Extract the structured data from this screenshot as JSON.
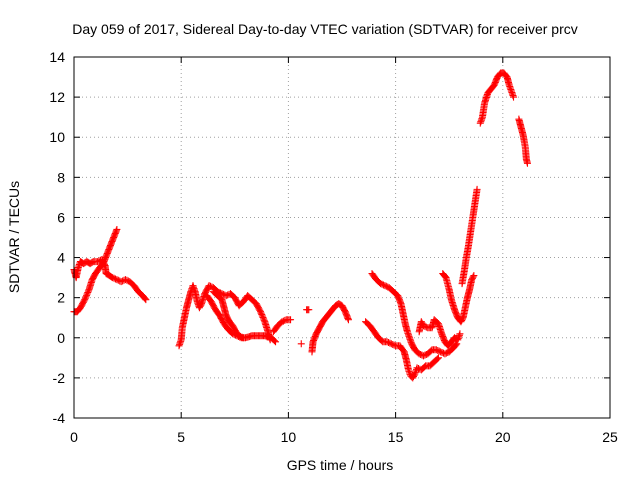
{
  "chart_data": {
    "type": "scatter",
    "title": "Day 059 of 2017, Sidereal Day-to-day VTEC variation (SDTVAR) for receiver prcv",
    "xlabel": "GPS time / hours",
    "ylabel": "SDTVAR / TECUs",
    "xlim": [
      0,
      25
    ],
    "ylim": [
      -4,
      14
    ],
    "xticks": [
      "0",
      "5",
      "10",
      "15",
      "20",
      "25"
    ],
    "yticks": [
      "-4",
      "-2",
      "0",
      "2",
      "4",
      "6",
      "8",
      "10",
      "12",
      "14"
    ],
    "grid": true,
    "marker": "+",
    "color": "#ff0000",
    "segments": [
      [
        [
          0.0,
          3.4
        ],
        [
          0.1,
          3.0
        ],
        [
          0.2,
          3.5
        ],
        [
          0.3,
          3.8
        ],
        [
          0.45,
          3.7
        ],
        [
          0.6,
          3.8
        ],
        [
          0.75,
          3.7
        ],
        [
          0.9,
          3.8
        ],
        [
          1.1,
          3.8
        ],
        [
          1.3,
          3.9
        ],
        [
          1.45,
          3.6
        ],
        [
          1.5,
          3.2
        ],
        [
          1.65,
          3.1
        ],
        [
          1.8,
          3.0
        ],
        [
          2.0,
          2.9
        ],
        [
          2.2,
          2.8
        ],
        [
          2.4,
          2.9
        ],
        [
          2.6,
          2.8
        ],
        [
          2.8,
          2.6
        ],
        [
          3.0,
          2.3
        ],
        [
          3.2,
          2.1
        ],
        [
          3.35,
          1.9
        ]
      ],
      [
        [
          0.0,
          1.3
        ],
        [
          0.15,
          1.3
        ],
        [
          0.3,
          1.5
        ],
        [
          0.5,
          1.9
        ],
        [
          0.7,
          2.4
        ],
        [
          0.85,
          2.9
        ],
        [
          1.0,
          3.2
        ],
        [
          1.2,
          3.5
        ],
        [
          1.4,
          3.8
        ],
        [
          1.55,
          4.2
        ],
        [
          1.7,
          4.6
        ],
        [
          1.85,
          5.0
        ],
        [
          2.0,
          5.4
        ]
      ],
      [
        [
          4.9,
          -0.4
        ],
        [
          5.0,
          -0.1
        ],
        [
          5.05,
          0.5
        ],
        [
          5.15,
          1.0
        ],
        [
          5.25,
          1.5
        ],
        [
          5.35,
          1.9
        ],
        [
          5.45,
          2.3
        ],
        [
          5.55,
          2.6
        ],
        [
          5.65,
          2.3
        ],
        [
          5.75,
          1.8
        ],
        [
          5.85,
          1.5
        ],
        [
          5.95,
          1.7
        ],
        [
          6.1,
          2.2
        ],
        [
          6.3,
          2.6
        ],
        [
          6.5,
          2.5
        ],
        [
          6.7,
          2.3
        ],
        [
          6.9,
          2.2
        ],
        [
          7.1,
          2.1
        ],
        [
          7.3,
          2.2
        ],
        [
          7.5,
          2.0
        ],
        [
          7.7,
          1.6
        ],
        [
          7.9,
          1.8
        ],
        [
          8.1,
          2.1
        ],
        [
          8.3,
          1.9
        ],
        [
          8.5,
          1.7
        ],
        [
          8.7,
          1.3
        ],
        [
          8.9,
          0.8
        ],
        [
          9.05,
          0.3
        ],
        [
          9.15,
          -0.1
        ]
      ],
      [
        [
          6.2,
          2.1
        ],
        [
          6.4,
          1.8
        ],
        [
          6.6,
          1.4
        ],
        [
          6.8,
          1.1
        ],
        [
          7.0,
          0.7
        ],
        [
          7.2,
          0.4
        ],
        [
          7.4,
          0.2
        ],
        [
          7.6,
          0.1
        ],
        [
          7.8,
          0.0
        ],
        [
          8.0,
          0.0
        ],
        [
          8.3,
          0.1
        ],
        [
          8.6,
          0.1
        ],
        [
          8.9,
          0.1
        ],
        [
          9.2,
          0.0
        ],
        [
          9.4,
          -0.2
        ]
      ],
      [
        [
          6.5,
          2.3
        ],
        [
          6.7,
          2.1
        ],
        [
          6.9,
          1.9
        ],
        [
          7.0,
          1.5
        ],
        [
          7.1,
          1.1
        ],
        [
          7.25,
          0.8
        ],
        [
          7.4,
          0.6
        ],
        [
          7.55,
          0.3
        ],
        [
          7.7,
          0.1
        ],
        [
          7.9,
          0.0
        ]
      ],
      [
        [
          9.3,
          0.3
        ],
        [
          9.5,
          0.6
        ],
        [
          9.7,
          0.8
        ],
        [
          9.9,
          0.9
        ],
        [
          10.1,
          0.9
        ]
      ],
      [
        [
          10.6,
          -0.3
        ]
      ],
      [
        [
          10.85,
          1.4
        ],
        [
          10.95,
          1.4
        ]
      ],
      [
        [
          11.1,
          -0.7
        ],
        [
          11.15,
          -0.2
        ],
        [
          11.3,
          0.2
        ],
        [
          11.45,
          0.5
        ],
        [
          11.6,
          0.8
        ],
        [
          11.75,
          1.0
        ],
        [
          11.9,
          1.2
        ],
        [
          12.05,
          1.4
        ],
        [
          12.2,
          1.6
        ],
        [
          12.35,
          1.7
        ],
        [
          12.5,
          1.6
        ],
        [
          12.65,
          1.3
        ],
        [
          12.8,
          0.9
        ]
      ],
      [
        [
          13.6,
          0.8
        ],
        [
          13.8,
          0.6
        ],
        [
          14.0,
          0.3
        ],
        [
          14.2,
          0.0
        ],
        [
          14.4,
          -0.2
        ],
        [
          14.6,
          -0.2
        ],
        [
          14.8,
          -0.3
        ],
        [
          15.0,
          -0.4
        ],
        [
          15.2,
          -0.4
        ],
        [
          15.4,
          -0.7
        ],
        [
          15.5,
          -1.1
        ],
        [
          15.6,
          -1.6
        ],
        [
          15.7,
          -1.9
        ],
        [
          15.8,
          -2.0
        ],
        [
          15.9,
          -1.8
        ],
        [
          16.0,
          -1.5
        ],
        [
          16.2,
          -1.6
        ],
        [
          16.4,
          -1.4
        ],
        [
          16.6,
          -1.4
        ],
        [
          16.8,
          -1.2
        ],
        [
          17.0,
          -1.0
        ]
      ],
      [
        [
          13.9,
          3.2
        ],
        [
          14.1,
          2.9
        ],
        [
          14.3,
          2.7
        ],
        [
          14.5,
          2.6
        ],
        [
          14.7,
          2.5
        ],
        [
          14.9,
          2.3
        ],
        [
          15.1,
          2.1
        ],
        [
          15.25,
          1.7
        ],
        [
          15.35,
          1.2
        ],
        [
          15.45,
          0.7
        ],
        [
          15.55,
          0.3
        ],
        [
          15.65,
          0.0
        ],
        [
          15.75,
          -0.3
        ],
        [
          15.9,
          -0.6
        ],
        [
          16.1,
          -0.8
        ],
        [
          16.3,
          -0.9
        ],
        [
          16.5,
          -0.8
        ],
        [
          16.7,
          -0.6
        ],
        [
          16.9,
          -0.6
        ],
        [
          17.1,
          -0.7
        ],
        [
          17.3,
          -0.8
        ],
        [
          17.5,
          -0.7
        ],
        [
          17.7,
          -0.5
        ],
        [
          17.85,
          -0.3
        ]
      ],
      [
        [
          16.1,
          0.3
        ],
        [
          16.2,
          0.8
        ],
        [
          16.3,
          0.6
        ],
        [
          16.5,
          0.5
        ],
        [
          16.7,
          0.5
        ],
        [
          16.8,
          0.9
        ],
        [
          17.0,
          0.7
        ],
        [
          17.15,
          0.2
        ],
        [
          17.3,
          -0.2
        ],
        [
          17.45,
          -0.4
        ],
        [
          17.6,
          -0.2
        ],
        [
          17.75,
          0.0
        ],
        [
          17.9,
          -0.1
        ],
        [
          18.0,
          0.2
        ]
      ],
      [
        [
          17.2,
          3.2
        ],
        [
          17.35,
          3.0
        ],
        [
          17.5,
          2.4
        ],
        [
          17.6,
          1.9
        ],
        [
          17.75,
          1.4
        ],
        [
          17.9,
          1.0
        ],
        [
          18.05,
          0.8
        ],
        [
          18.15,
          1.0
        ],
        [
          18.25,
          1.5
        ],
        [
          18.35,
          2.0
        ],
        [
          18.45,
          2.4
        ],
        [
          18.55,
          2.9
        ],
        [
          18.65,
          3.1
        ]
      ],
      [
        [
          18.1,
          2.7
        ],
        [
          18.2,
          3.3
        ],
        [
          18.3,
          4.0
        ],
        [
          18.4,
          4.6
        ],
        [
          18.5,
          5.3
        ],
        [
          18.6,
          6.0
        ],
        [
          18.7,
          6.7
        ],
        [
          18.8,
          7.4
        ]
      ],
      [
        [
          18.95,
          10.7
        ],
        [
          19.05,
          11.0
        ],
        [
          19.15,
          11.7
        ],
        [
          19.3,
          12.2
        ],
        [
          19.45,
          12.4
        ],
        [
          19.6,
          12.6
        ],
        [
          19.75,
          13.0
        ],
        [
          19.9,
          13.2
        ],
        [
          20.05,
          13.2
        ],
        [
          20.2,
          13.0
        ],
        [
          20.3,
          12.6
        ],
        [
          20.4,
          12.3
        ],
        [
          20.5,
          12.0
        ]
      ],
      [
        [
          20.75,
          10.9
        ],
        [
          20.85,
          10.5
        ],
        [
          20.95,
          10.1
        ],
        [
          21.05,
          9.5
        ],
        [
          21.1,
          8.9
        ],
        [
          21.15,
          8.7
        ]
      ]
    ]
  }
}
